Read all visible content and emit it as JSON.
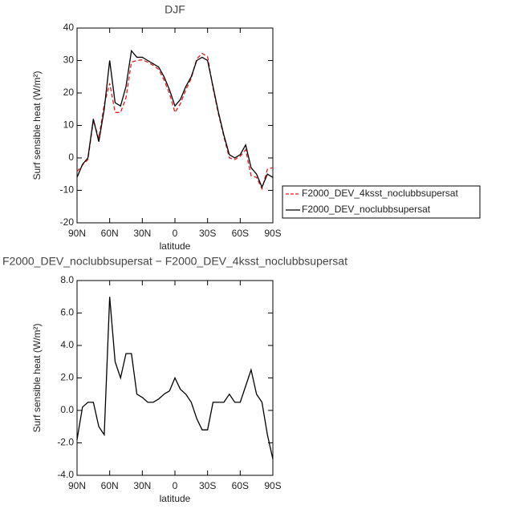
{
  "chart_data": [
    {
      "type": "line",
      "title": "DJF",
      "x_label": "latitude",
      "y_label": "Surf sensible heat (W/m²)",
      "x": [
        90,
        85,
        80,
        75,
        70,
        65,
        60,
        55,
        50,
        45,
        40,
        35,
        30,
        25,
        20,
        15,
        10,
        5,
        0,
        -5,
        -10,
        -15,
        -20,
        -25,
        -30,
        -35,
        -40,
        -45,
        -50,
        -55,
        -60,
        -65,
        -70,
        -75,
        -80,
        -85,
        -90
      ],
      "xlim": [
        90,
        -90
      ],
      "xticks": [
        {
          "value": 90,
          "label": "90N"
        },
        {
          "value": 60,
          "label": "60N"
        },
        {
          "value": 30,
          "label": "30N"
        },
        0,
        {
          "value": -30,
          "label": "30S"
        },
        {
          "value": -60,
          "label": "60S"
        },
        {
          "value": -90,
          "label": "90S"
        }
      ],
      "ylim": [
        -20,
        40
      ],
      "yticks": [
        -20,
        -10,
        0,
        10,
        20,
        30,
        40
      ],
      "legend": "outside-right",
      "series": [
        {
          "name": "F2000_DEV_4ksst_noclubbsupersat",
          "color": "#e41a1c",
          "dash": true,
          "values": [
            -4.2,
            -2.2,
            -0.5,
            11.5,
            6,
            16.5,
            23,
            14,
            14,
            18.5,
            29.5,
            30,
            30.2,
            29.5,
            28.5,
            27.3,
            24,
            19.8,
            14,
            16.7,
            21,
            24.5,
            30.5,
            32.2,
            31.2,
            21.5,
            13.5,
            6.5,
            0,
            -0.5,
            0.5,
            2.5,
            -5.5,
            -6,
            -9.5,
            -3.5,
            -3
          ]
        },
        {
          "name": "F2000_DEV_noclubbsupersat",
          "color": "#000000",
          "dash": false,
          "values": [
            -6,
            -2,
            0,
            12,
            5,
            15,
            30,
            17,
            16,
            22,
            33,
            31,
            31,
            30,
            29,
            28,
            25,
            21,
            16,
            18,
            22,
            25,
            30,
            31,
            30,
            22,
            14,
            7,
            1,
            0,
            1,
            4,
            -3,
            -5,
            -9,
            -5,
            -6
          ]
        }
      ]
    },
    {
      "type": "line",
      "title": "F2000_DEV_noclubbsupersat − F2000_DEV_4ksst_noclubbsupersat",
      "x_label": "latitude",
      "y_label": "Surf sensible heat (W/m²)",
      "x": [
        90,
        85,
        80,
        75,
        70,
        65,
        60,
        55,
        50,
        45,
        40,
        35,
        30,
        25,
        20,
        15,
        10,
        5,
        0,
        -5,
        -10,
        -15,
        -20,
        -25,
        -30,
        -35,
        -40,
        -45,
        -50,
        -55,
        -60,
        -65,
        -70,
        -75,
        -80,
        -85,
        -90
      ],
      "xlim": [
        90,
        -90
      ],
      "xticks": [
        {
          "value": 90,
          "label": "90N"
        },
        {
          "value": 60,
          "label": "60N"
        },
        {
          "value": 30,
          "label": "30N"
        },
        0,
        {
          "value": -30,
          "label": "30S"
        },
        {
          "value": -60,
          "label": "60S"
        },
        {
          "value": -90,
          "label": "90S"
        }
      ],
      "ylim": [
        -4,
        8
      ],
      "yticks": [
        {
          "value": -4,
          "label": "-4.0"
        },
        {
          "value": -2,
          "label": "-2.0"
        },
        {
          "value": 0,
          "label": "0.0"
        },
        {
          "value": 2,
          "label": "2.0"
        },
        {
          "value": 4,
          "label": "4.0"
        },
        {
          "value": 6,
          "label": "6.0"
        },
        {
          "value": 8,
          "label": "8.0"
        }
      ],
      "series": [
        {
          "color": "#000000",
          "dash": false,
          "values": [
            -1.8,
            0.2,
            0.5,
            0.5,
            -1,
            -1.5,
            7,
            3,
            2,
            3.5,
            3.5,
            1,
            0.8,
            0.5,
            0.5,
            0.7,
            1,
            1.2,
            2,
            1.3,
            1,
            0.5,
            -0.5,
            -1.2,
            -1.2,
            0.5,
            0.5,
            0.5,
            1,
            0.5,
            0.5,
            1.5,
            2.5,
            1,
            0.5,
            -1.5,
            -3
          ]
        }
      ]
    }
  ]
}
